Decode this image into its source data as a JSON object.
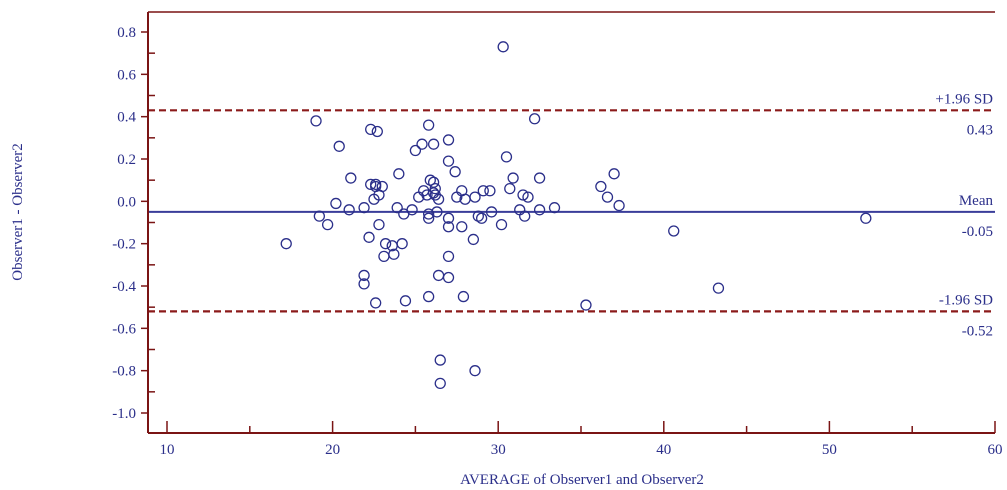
{
  "chart_data": {
    "type": "scatter",
    "xlabel": "AVERAGE of Observer1 and Observer2",
    "ylabel": "Observer1 - Observer2",
    "xlim": [
      10,
      60
    ],
    "ylim": [
      -1.0,
      0.8
    ],
    "x_ticks": [
      "10",
      "20",
      "30",
      "40",
      "50",
      "60"
    ],
    "y_ticks": [
      "0.8",
      "0.6",
      "0.4",
      "0.2",
      "0.0",
      "-0.2",
      "-0.4",
      "-0.6",
      "-0.8",
      "-1.0"
    ],
    "grid": false,
    "reference_lines": [
      {
        "name": "+1.96 SD",
        "value_label": "0.43",
        "y": 0.43,
        "style": "dashed",
        "color": "#8b1a1a"
      },
      {
        "name": "Mean",
        "value_label": "-0.05",
        "y": -0.05,
        "style": "solid",
        "color": "#3a3d9a"
      },
      {
        "name": "-1.96 SD",
        "value_label": "-0.52",
        "y": -0.52,
        "style": "dashed",
        "color": "#8b1a1a"
      }
    ],
    "colors": {
      "axis": "#7a1414",
      "points": "#2b2f8a",
      "text": "#2b2f8a"
    },
    "points": [
      [
        30.3,
        0.73
      ],
      [
        19.0,
        0.38
      ],
      [
        32.2,
        0.39
      ],
      [
        22.3,
        0.34
      ],
      [
        22.7,
        0.33
      ],
      [
        25.8,
        0.36
      ],
      [
        27.0,
        0.29
      ],
      [
        26.1,
        0.27
      ],
      [
        25.4,
        0.27
      ],
      [
        20.4,
        0.26
      ],
      [
        25.0,
        0.24
      ],
      [
        27.0,
        0.19
      ],
      [
        30.5,
        0.21
      ],
      [
        37.0,
        0.13
      ],
      [
        27.4,
        0.14
      ],
      [
        24.0,
        0.13
      ],
      [
        21.1,
        0.11
      ],
      [
        30.9,
        0.11
      ],
      [
        32.5,
        0.11
      ],
      [
        36.2,
        0.07
      ],
      [
        22.6,
        0.08
      ],
      [
        22.6,
        0.07
      ],
      [
        22.3,
        0.08
      ],
      [
        23.0,
        0.07
      ],
      [
        25.9,
        0.1
      ],
      [
        26.1,
        0.09
      ],
      [
        26.2,
        0.06
      ],
      [
        26.1,
        0.04
      ],
      [
        25.5,
        0.05
      ],
      [
        30.7,
        0.06
      ],
      [
        29.1,
        0.05
      ],
      [
        29.5,
        0.05
      ],
      [
        27.8,
        0.05
      ],
      [
        22.8,
        0.03
      ],
      [
        22.5,
        0.01
      ],
      [
        25.2,
        0.02
      ],
      [
        25.7,
        0.03
      ],
      [
        27.5,
        0.02
      ],
      [
        28.0,
        0.01
      ],
      [
        28.6,
        0.02
      ],
      [
        26.2,
        0.03
      ],
      [
        26.4,
        0.01
      ],
      [
        31.5,
        0.03
      ],
      [
        31.8,
        0.02
      ],
      [
        36.6,
        0.02
      ],
      [
        20.2,
        -0.01
      ],
      [
        21.9,
        -0.03
      ],
      [
        23.9,
        -0.03
      ],
      [
        24.8,
        -0.04
      ],
      [
        26.3,
        -0.05
      ],
      [
        29.6,
        -0.05
      ],
      [
        31.3,
        -0.04
      ],
      [
        32.5,
        -0.04
      ],
      [
        33.4,
        -0.03
      ],
      [
        37.3,
        -0.02
      ],
      [
        21.0,
        -0.04
      ],
      [
        19.2,
        -0.07
      ],
      [
        24.3,
        -0.06
      ],
      [
        25.8,
        -0.06
      ],
      [
        25.8,
        -0.08
      ],
      [
        27.0,
        -0.08
      ],
      [
        28.8,
        -0.07
      ],
      [
        29.0,
        -0.08
      ],
      [
        31.6,
        -0.07
      ],
      [
        52.2,
        -0.08
      ],
      [
        19.7,
        -0.11
      ],
      [
        22.8,
        -0.11
      ],
      [
        27.0,
        -0.12
      ],
      [
        27.8,
        -0.12
      ],
      [
        30.2,
        -0.11
      ],
      [
        40.6,
        -0.14
      ],
      [
        17.2,
        -0.2
      ],
      [
        22.2,
        -0.17
      ],
      [
        23.2,
        -0.2
      ],
      [
        23.6,
        -0.21
      ],
      [
        24.2,
        -0.2
      ],
      [
        28.5,
        -0.18
      ],
      [
        23.1,
        -0.26
      ],
      [
        23.7,
        -0.25
      ],
      [
        27.0,
        -0.26
      ],
      [
        26.4,
        -0.35
      ],
      [
        27.0,
        -0.36
      ],
      [
        21.9,
        -0.35
      ],
      [
        21.9,
        -0.39
      ],
      [
        43.3,
        -0.41
      ],
      [
        22.6,
        -0.48
      ],
      [
        24.4,
        -0.47
      ],
      [
        25.8,
        -0.45
      ],
      [
        27.9,
        -0.45
      ],
      [
        35.3,
        -0.49
      ],
      [
        26.5,
        -0.75
      ],
      [
        28.6,
        -0.8
      ],
      [
        26.5,
        -0.86
      ]
    ]
  }
}
